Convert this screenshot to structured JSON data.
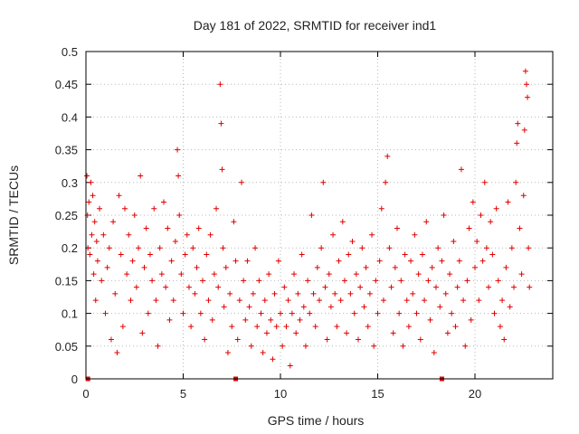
{
  "chart_data": {
    "type": "scatter",
    "title": "Day 181 of 2022, SRMTID for receiver ind1",
    "xlabel": "GPS time / hours",
    "ylabel": "SRMTID / TECUs",
    "xlim": [
      0,
      24
    ],
    "ylim": [
      0,
      0.5
    ],
    "x_ticks": [
      0,
      5,
      10,
      15,
      20
    ],
    "x_tick_labels": [
      "0",
      "5",
      "10",
      "15",
      "20"
    ],
    "y_ticks": [
      0,
      0.05,
      0.1,
      0.15,
      0.2,
      0.25,
      0.3,
      0.35,
      0.4,
      0.45,
      0.5
    ],
    "y_tick_labels": [
      "0",
      "0.05",
      "0.1",
      "0.15",
      "0.2",
      "0.25",
      "0.3",
      "0.35",
      "0.4",
      "0.45",
      "0.5"
    ],
    "grid": true,
    "marker": "plus",
    "color": "#e00000",
    "series": [
      {
        "name": "SRMTID",
        "points": [
          [
            0.05,
            0.31
          ],
          [
            0.08,
            0.25
          ],
          [
            0.1,
            0.2
          ],
          [
            0.15,
            0.27
          ],
          [
            0.2,
            0.19
          ],
          [
            0.25,
            0.3
          ],
          [
            0.3,
            0.22
          ],
          [
            0.35,
            0.28
          ],
          [
            0.4,
            0.16
          ],
          [
            0.45,
            0.24
          ],
          [
            0.5,
            0.12
          ],
          [
            0.55,
            0.21
          ],
          [
            0.6,
            0.18
          ],
          [
            0.7,
            0.26
          ],
          [
            0.8,
            0.15
          ],
          [
            0.9,
            0.22
          ],
          [
            1.0,
            0.1
          ],
          [
            1.1,
            0.17
          ],
          [
            1.2,
            0.2
          ],
          [
            1.3,
            0.06
          ],
          [
            1.4,
            0.24
          ],
          [
            1.5,
            0.13
          ],
          [
            1.6,
            0.04
          ],
          [
            1.7,
            0.28
          ],
          [
            1.8,
            0.19
          ],
          [
            1.9,
            0.08
          ],
          [
            2.0,
            0.26
          ],
          [
            2.1,
            0.16
          ],
          [
            2.2,
            0.22
          ],
          [
            2.3,
            0.12
          ],
          [
            2.4,
            0.18
          ],
          [
            2.5,
            0.25
          ],
          [
            2.6,
            0.14
          ],
          [
            2.7,
            0.2
          ],
          [
            2.8,
            0.31
          ],
          [
            2.9,
            0.07
          ],
          [
            3.0,
            0.17
          ],
          [
            3.1,
            0.23
          ],
          [
            3.2,
            0.1
          ],
          [
            3.3,
            0.19
          ],
          [
            3.4,
            0.15
          ],
          [
            3.5,
            0.26
          ],
          [
            3.6,
            0.12
          ],
          [
            3.7,
            0.05
          ],
          [
            3.8,
            0.2
          ],
          [
            3.9,
            0.16
          ],
          [
            4.0,
            0.27
          ],
          [
            4.1,
            0.14
          ],
          [
            4.2,
            0.23
          ],
          [
            4.3,
            0.09
          ],
          [
            4.4,
            0.18
          ],
          [
            4.5,
            0.12
          ],
          [
            4.6,
            0.21
          ],
          [
            4.7,
            0.35
          ],
          [
            4.75,
            0.31
          ],
          [
            4.8,
            0.25
          ],
          [
            4.9,
            0.16
          ],
          [
            5.0,
            0.1
          ],
          [
            5.1,
            0.19
          ],
          [
            5.2,
            0.22
          ],
          [
            5.3,
            0.14
          ],
          [
            5.4,
            0.08
          ],
          [
            5.5,
            0.2
          ],
          [
            5.6,
            0.13
          ],
          [
            5.7,
            0.17
          ],
          [
            5.8,
            0.23
          ],
          [
            5.9,
            0.1
          ],
          [
            6.0,
            0.15
          ],
          [
            6.1,
            0.06
          ],
          [
            6.2,
            0.19
          ],
          [
            6.3,
            0.12
          ],
          [
            6.4,
            0.22
          ],
          [
            6.5,
            0.09
          ],
          [
            6.6,
            0.16
          ],
          [
            6.7,
            0.26
          ],
          [
            6.8,
            0.14
          ],
          [
            6.9,
            0.45
          ],
          [
            6.95,
            0.39
          ],
          [
            7.0,
            0.32
          ],
          [
            7.05,
            0.2
          ],
          [
            7.1,
            0.11
          ],
          [
            7.2,
            0.17
          ],
          [
            7.3,
            0.04
          ],
          [
            7.4,
            0.13
          ],
          [
            7.5,
            0.08
          ],
          [
            7.6,
            0.24
          ],
          [
            7.7,
            0.18
          ],
          [
            7.8,
            0.06
          ],
          [
            7.9,
            0.12
          ],
          [
            8.0,
            0.3
          ],
          [
            8.1,
            0.15
          ],
          [
            8.2,
            0.09
          ],
          [
            8.3,
            0.18
          ],
          [
            8.4,
            0.11
          ],
          [
            8.5,
            0.05
          ],
          [
            8.6,
            0.13
          ],
          [
            8.7,
            0.2
          ],
          [
            8.8,
            0.08
          ],
          [
            8.9,
            0.15
          ],
          [
            9.0,
            0.1
          ],
          [
            9.1,
            0.04
          ],
          [
            9.2,
            0.12
          ],
          [
            9.3,
            0.07
          ],
          [
            9.4,
            0.16
          ],
          [
            9.5,
            0.09
          ],
          [
            9.6,
            0.03
          ],
          [
            9.7,
            0.13
          ],
          [
            9.8,
            0.08
          ],
          [
            9.9,
            0.18
          ],
          [
            10.0,
            0.1
          ],
          [
            10.1,
            0.05
          ],
          [
            10.2,
            0.14
          ],
          [
            10.3,
            0.08
          ],
          [
            10.4,
            0.12
          ],
          [
            10.5,
            0.02
          ],
          [
            10.6,
            0.1
          ],
          [
            10.7,
            0.16
          ],
          [
            10.8,
            0.07
          ],
          [
            10.9,
            0.13
          ],
          [
            11.0,
            0.09
          ],
          [
            11.1,
            0.19
          ],
          [
            11.2,
            0.11
          ],
          [
            11.3,
            0.05
          ],
          [
            11.4,
            0.15
          ],
          [
            11.5,
            0.1
          ],
          [
            11.6,
            0.25
          ],
          [
            11.7,
            0.13
          ],
          [
            11.8,
            0.08
          ],
          [
            11.9,
            0.17
          ],
          [
            12.0,
            0.12
          ],
          [
            12.1,
            0.2
          ],
          [
            12.2,
            0.3
          ],
          [
            12.3,
            0.14
          ],
          [
            12.4,
            0.06
          ],
          [
            12.5,
            0.16
          ],
          [
            12.6,
            0.11
          ],
          [
            12.7,
            0.22
          ],
          [
            12.8,
            0.13
          ],
          [
            12.9,
            0.08
          ],
          [
            13.0,
            0.18
          ],
          [
            13.1,
            0.12
          ],
          [
            13.2,
            0.24
          ],
          [
            13.3,
            0.15
          ],
          [
            13.4,
            0.07
          ],
          [
            13.5,
            0.19
          ],
          [
            13.6,
            0.13
          ],
          [
            13.7,
            0.21
          ],
          [
            13.8,
            0.1
          ],
          [
            13.9,
            0.16
          ],
          [
            14.0,
            0.06
          ],
          [
            14.1,
            0.14
          ],
          [
            14.2,
            0.2
          ],
          [
            14.3,
            0.11
          ],
          [
            14.4,
            0.17
          ],
          [
            14.5,
            0.08
          ],
          [
            14.6,
            0.13
          ],
          [
            14.7,
            0.22
          ],
          [
            14.8,
            0.05
          ],
          [
            14.9,
            0.15
          ],
          [
            15.0,
            0.1
          ],
          [
            15.1,
            0.18
          ],
          [
            15.2,
            0.26
          ],
          [
            15.3,
            0.12
          ],
          [
            15.4,
            0.3
          ],
          [
            15.5,
            0.34
          ],
          [
            15.6,
            0.2
          ],
          [
            15.7,
            0.14
          ],
          [
            15.8,
            0.07
          ],
          [
            15.9,
            0.17
          ],
          [
            16.0,
            0.23
          ],
          [
            16.1,
            0.1
          ],
          [
            16.2,
            0.15
          ],
          [
            16.3,
            0.05
          ],
          [
            16.4,
            0.19
          ],
          [
            16.5,
            0.12
          ],
          [
            16.6,
            0.08
          ],
          [
            16.7,
            0.18
          ],
          [
            16.8,
            0.13
          ],
          [
            16.9,
            0.22
          ],
          [
            17.0,
            0.1
          ],
          [
            17.1,
            0.16
          ],
          [
            17.2,
            0.06
          ],
          [
            17.3,
            0.19
          ],
          [
            17.4,
            0.12
          ],
          [
            17.5,
            0.24
          ],
          [
            17.6,
            0.15
          ],
          [
            17.7,
            0.09
          ],
          [
            17.8,
            0.17
          ],
          [
            17.9,
            0.04
          ],
          [
            18.0,
            0.14
          ],
          [
            18.1,
            0.2
          ],
          [
            18.2,
            0.11
          ],
          [
            18.3,
            0.18
          ],
          [
            18.4,
            0.25
          ],
          [
            18.5,
            0.13
          ],
          [
            18.6,
            0.07
          ],
          [
            18.7,
            0.16
          ],
          [
            18.8,
            0.1
          ],
          [
            18.9,
            0.21
          ],
          [
            19.0,
            0.08
          ],
          [
            19.1,
            0.14
          ],
          [
            19.2,
            0.18
          ],
          [
            19.3,
            0.32
          ],
          [
            19.4,
            0.12
          ],
          [
            19.5,
            0.05
          ],
          [
            19.6,
            0.15
          ],
          [
            19.7,
            0.23
          ],
          [
            19.8,
            0.09
          ],
          [
            19.9,
            0.27
          ],
          [
            20.0,
            0.17
          ],
          [
            20.1,
            0.21
          ],
          [
            20.2,
            0.12
          ],
          [
            20.3,
            0.25
          ],
          [
            20.4,
            0.18
          ],
          [
            20.5,
            0.3
          ],
          [
            20.6,
            0.2
          ],
          [
            20.7,
            0.14
          ],
          [
            20.8,
            0.24
          ],
          [
            20.9,
            0.19
          ],
          [
            21.0,
            0.1
          ],
          [
            21.1,
            0.26
          ],
          [
            21.2,
            0.15
          ],
          [
            21.3,
            0.08
          ],
          [
            21.4,
            0.12
          ],
          [
            21.5,
            0.06
          ],
          [
            21.6,
            0.17
          ],
          [
            21.7,
            0.27
          ],
          [
            21.8,
            0.11
          ],
          [
            21.9,
            0.2
          ],
          [
            22.0,
            0.14
          ],
          [
            22.1,
            0.3
          ],
          [
            22.15,
            0.36
          ],
          [
            22.2,
            0.39
          ],
          [
            22.3,
            0.23
          ],
          [
            22.4,
            0.16
          ],
          [
            22.5,
            0.28
          ],
          [
            22.55,
            0.38
          ],
          [
            22.6,
            0.47
          ],
          [
            22.65,
            0.45
          ],
          [
            22.7,
            0.43
          ],
          [
            22.75,
            0.2
          ],
          [
            22.8,
            0.14
          ]
        ]
      }
    ],
    "zero_points": [
      [
        0.1,
        0
      ],
      [
        7.7,
        0
      ],
      [
        18.3,
        0
      ]
    ]
  }
}
